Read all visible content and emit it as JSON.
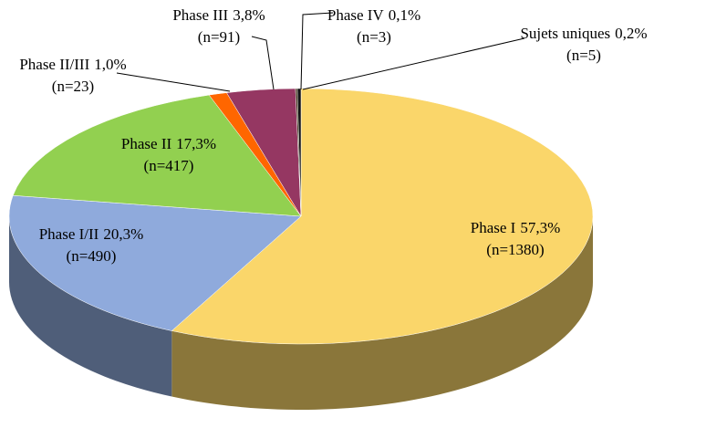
{
  "chart_data": {
    "type": "pie",
    "categories": [
      "Phase I",
      "Phase I/II",
      "Phase II",
      "Phase II/III",
      "Phase III",
      "Phase IV",
      "Sujets uniques"
    ],
    "values": [
      57.3,
      20.3,
      17.3,
      1.0,
      3.8,
      0.1,
      0.2
    ],
    "value_labels": [
      "57,3%",
      "20,3%",
      "17,3%",
      "1,0%",
      "3,8%",
      "0,1%",
      "0,2%"
    ],
    "count_labels": [
      "(n=1380)",
      "(n=490)",
      "(n=417)",
      "(n=23)",
      "(n=91)",
      "(n=3)",
      "(n=5)"
    ],
    "colors": [
      "#fad66a",
      "#8faadc",
      "#92d050",
      "#ff6600",
      "#953762",
      "#3a2a10",
      "#111111"
    ]
  }
}
